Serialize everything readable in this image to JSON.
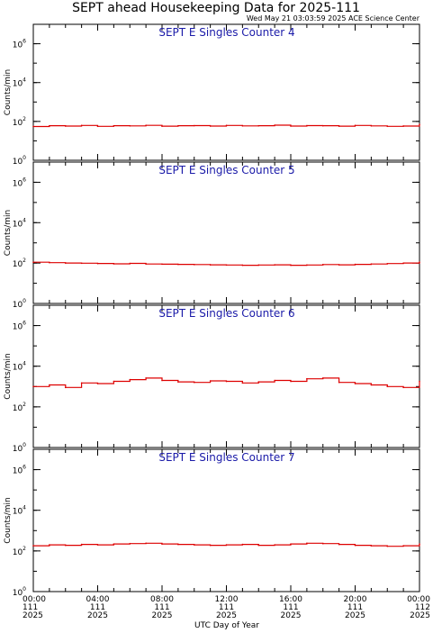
{
  "title": "SEPT ahead Housekeeping Data for 2025-111",
  "timestamp": "Wed May 21 03:03:59 2025 ACE Science Center",
  "xlabel": "UTC Day of Year",
  "colors": {
    "trace": "#dd0000",
    "panel_title": "#1a1aa8",
    "axis": "#000000"
  },
  "chart_data": [
    {
      "type": "line",
      "title": "SEPT E Singles Counter 4",
      "ylabel": "Counts/min",
      "yscale": "log",
      "ylim": [
        1,
        10000000
      ],
      "yticks": [
        {
          "value": 1,
          "label_base": "10",
          "label_exp": "0"
        },
        {
          "value": 100,
          "label_base": "10",
          "label_exp": "2"
        },
        {
          "value": 10000,
          "label_base": "10",
          "label_exp": "4"
        },
        {
          "value": 1000000,
          "label_base": "10",
          "label_exp": "6"
        }
      ],
      "series": [
        {
          "x_hours": [
            0,
            1,
            2,
            3,
            4,
            5,
            6,
            7,
            8,
            9,
            10,
            11,
            12,
            13,
            14,
            15,
            16,
            17,
            18,
            19,
            20,
            21,
            22,
            23,
            24
          ],
          "values": [
            55,
            60,
            58,
            62,
            56,
            60,
            59,
            63,
            57,
            60,
            61,
            58,
            62,
            59,
            60,
            64,
            58,
            61,
            60,
            57,
            62,
            59,
            56,
            58,
            70
          ]
        }
      ]
    },
    {
      "type": "line",
      "title": "SEPT E Singles Counter 5",
      "ylabel": "Counts/min",
      "yscale": "log",
      "ylim": [
        1,
        10000000
      ],
      "yticks": [
        {
          "value": 1,
          "label_base": "10",
          "label_exp": "0"
        },
        {
          "value": 100,
          "label_base": "10",
          "label_exp": "2"
        },
        {
          "value": 10000,
          "label_base": "10",
          "label_exp": "4"
        },
        {
          "value": 1000000,
          "label_base": "10",
          "label_exp": "6"
        }
      ],
      "series": [
        {
          "x_hours": [
            0,
            1,
            2,
            3,
            4,
            5,
            6,
            7,
            8,
            9,
            10,
            11,
            12,
            13,
            14,
            15,
            16,
            17,
            18,
            19,
            20,
            21,
            22,
            23,
            24
          ],
          "values": [
            110,
            105,
            100,
            98,
            95,
            92,
            96,
            90,
            88,
            86,
            84,
            82,
            80,
            78,
            80,
            82,
            78,
            80,
            84,
            82,
            86,
            90,
            94,
            100,
            110
          ]
        }
      ]
    },
    {
      "type": "line",
      "title": "SEPT E Singles Counter 6",
      "ylabel": "Counts/min",
      "yscale": "log",
      "ylim": [
        1,
        10000000
      ],
      "yticks": [
        {
          "value": 1,
          "label_base": "10",
          "label_exp": "0"
        },
        {
          "value": 100,
          "label_base": "10",
          "label_exp": "2"
        },
        {
          "value": 10000,
          "label_base": "10",
          "label_exp": "4"
        },
        {
          "value": 1000000,
          "label_base": "10",
          "label_exp": "6"
        }
      ],
      "series": [
        {
          "x_hours": [
            0,
            1,
            2,
            3,
            4,
            5,
            6,
            7,
            8,
            9,
            10,
            11,
            12,
            13,
            14,
            15,
            16,
            17,
            18,
            19,
            20,
            21,
            22,
            23,
            24
          ],
          "values": [
            1000,
            1200,
            900,
            1500,
            1400,
            1800,
            2200,
            2600,
            2000,
            1700,
            1600,
            1900,
            1800,
            1500,
            1700,
            2000,
            1800,
            2400,
            2600,
            1600,
            1400,
            1200,
            1000,
            900,
            1800
          ]
        }
      ]
    },
    {
      "type": "line",
      "title": "SEPT E Singles Counter 7",
      "ylabel": "Counts/min",
      "yscale": "log",
      "ylim": [
        1,
        10000000
      ],
      "yticks": [
        {
          "value": 1,
          "label_base": "10",
          "label_exp": "0"
        },
        {
          "value": 100,
          "label_base": "10",
          "label_exp": "2"
        },
        {
          "value": 10000,
          "label_base": "10",
          "label_exp": "4"
        },
        {
          "value": 1000000,
          "label_base": "10",
          "label_exp": "6"
        }
      ],
      "series": [
        {
          "x_hours": [
            0,
            1,
            2,
            3,
            4,
            5,
            6,
            7,
            8,
            9,
            10,
            11,
            12,
            13,
            14,
            15,
            16,
            17,
            18,
            19,
            20,
            21,
            22,
            23,
            24
          ],
          "values": [
            180,
            200,
            190,
            210,
            200,
            220,
            230,
            240,
            220,
            210,
            200,
            190,
            200,
            210,
            190,
            200,
            220,
            240,
            230,
            210,
            190,
            180,
            170,
            180,
            220
          ]
        }
      ]
    }
  ],
  "xticks": [
    {
      "hours": 0,
      "time": "00:00",
      "doy": "111",
      "year": "2025"
    },
    {
      "hours": 4,
      "time": "04:00",
      "doy": "111",
      "year": "2025"
    },
    {
      "hours": 8,
      "time": "08:00",
      "doy": "111",
      "year": "2025"
    },
    {
      "hours": 12,
      "time": "12:00",
      "doy": "111",
      "year": "2025"
    },
    {
      "hours": 16,
      "time": "16:00",
      "doy": "111",
      "year": "2025"
    },
    {
      "hours": 20,
      "time": "20:00",
      "doy": "111",
      "year": "2025"
    },
    {
      "hours": 24,
      "time": "00:00",
      "doy": "112",
      "year": "2025"
    }
  ]
}
